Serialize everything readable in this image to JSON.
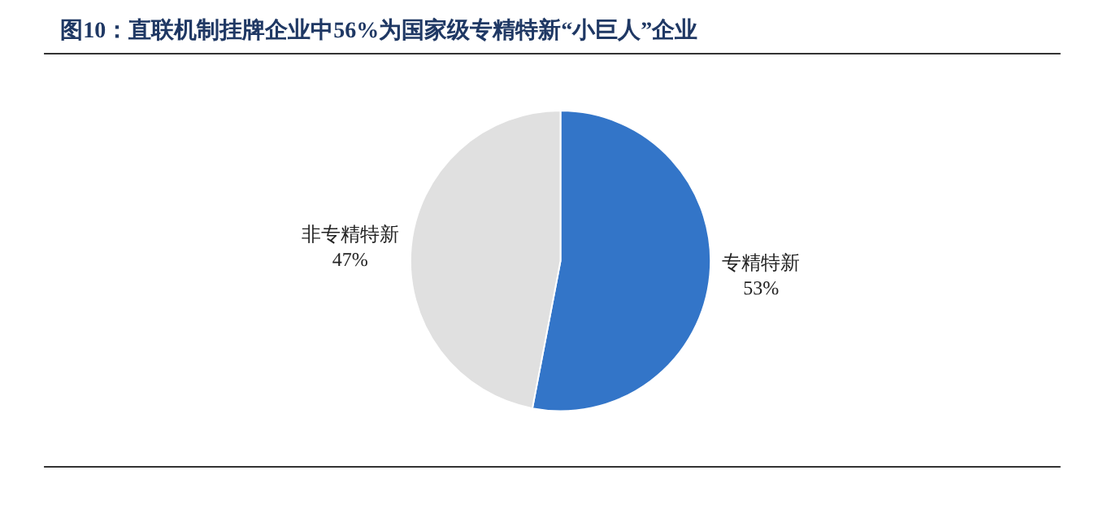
{
  "chart_data": {
    "type": "pie",
    "title": "图10：直联机制挂牌企业中56%为国家级专精特新“小巨人”企业",
    "categories": [
      "专精特新",
      "非专精特新"
    ],
    "values": [
      53,
      47
    ],
    "colors": [
      "#3375c8",
      "#e0e0e0"
    ],
    "value_labels": [
      "53%",
      "47%"
    ],
    "legend": false
  }
}
